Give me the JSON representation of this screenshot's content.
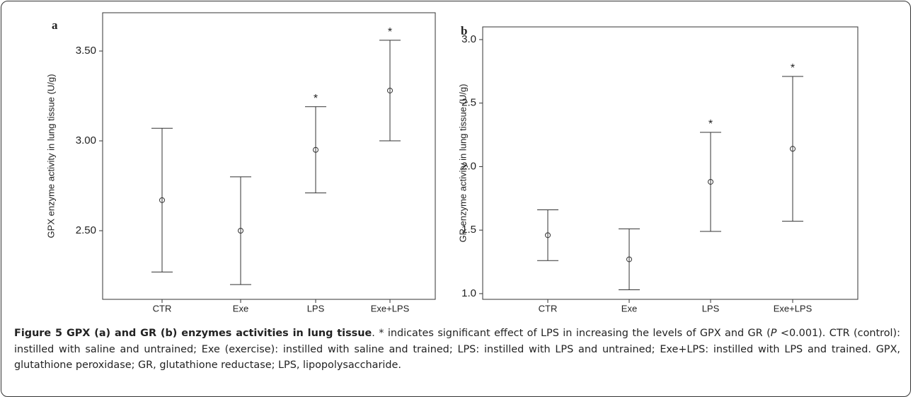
{
  "chart_data": [
    {
      "type": "errorbar",
      "panel": "a",
      "y_label": "GPX enzyme activity in lung tissue (U/g)",
      "categories": [
        "CTR",
        "Exe",
        "LPS",
        "Exe+LPS"
      ],
      "series": [
        {
          "color": "#333333",
          "values": [
            2.67,
            2.5,
            2.95,
            3.28
          ],
          "lower": [
            2.27,
            2.2,
            2.71,
            3.0
          ],
          "upper": [
            3.07,
            2.8,
            3.19,
            3.56
          ]
        }
      ],
      "annotations": [
        {
          "text": "*",
          "category": "LPS"
        },
        {
          "text": "*",
          "category": "Exe+LPS"
        }
      ],
      "ylim": [
        2.118,
        3.713
      ],
      "yticks": [
        {
          "value": 2.5,
          "label": "2.50"
        },
        {
          "value": 3,
          "label": "3.00"
        },
        {
          "value": 3.5,
          "label": "3.50"
        }
      ]
    },
    {
      "type": "errorbar",
      "panel": "b",
      "y_label": "GR enzyme activity in lung tissue (U/g)",
      "categories": [
        "CTR",
        "Exe",
        "LPS",
        "Exe+LPS"
      ],
      "series": [
        {
          "color": "#333333",
          "values": [
            1.46,
            1.27,
            1.88,
            2.14
          ],
          "lower": [
            1.26,
            1.03,
            1.49,
            1.57
          ],
          "upper": [
            1.66,
            1.51,
            2.27,
            2.71
          ]
        }
      ],
      "annotations": [
        {
          "text": "*",
          "category": "LPS"
        },
        {
          "text": "*",
          "category": "Exe+LPS"
        }
      ],
      "ylim": [
        0.955,
        3.1
      ],
      "yticks": [
        {
          "value": 1,
          "label": "1.0"
        },
        {
          "value": 1.5,
          "label": "1.5"
        },
        {
          "value": 2,
          "label": "2.0"
        },
        {
          "value": 2.5,
          "label": "2.5"
        },
        {
          "value": 3,
          "label": "3.0"
        }
      ]
    }
  ],
  "caption": {
    "title": "Figure 5 GPX (a) and GR (b) enzymes activities in lung tissue",
    "text_1": ". * indicates significant effect of LPS in increasing the levels of GPX and GR (",
    "p": "P",
    "text_2": " <0.001). CTR (control): instilled with saline and untrained; Exe (exercise): instilled with saline and trained; LPS: instilled with LPS and untrained; Exe+LPS: instilled with LPS and trained. GPX, glutathione peroxidase; GR, glutathione reductase; LPS, lipopolysaccharide."
  }
}
